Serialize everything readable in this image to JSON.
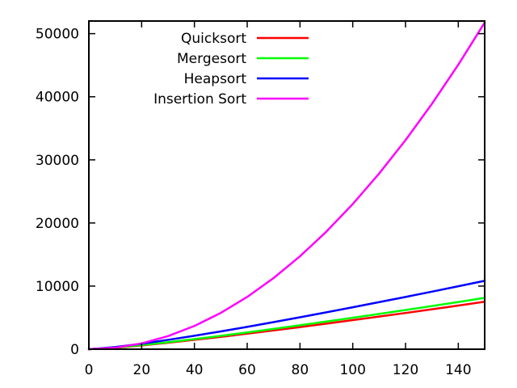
{
  "chart_data": {
    "type": "line",
    "title": "",
    "xlabel": "",
    "ylabel": "",
    "xlim": [
      0,
      150
    ],
    "ylim": [
      0,
      52000
    ],
    "xticks": [
      0,
      20,
      40,
      60,
      80,
      100,
      120,
      140
    ],
    "yticks": [
      0,
      10000,
      20000,
      30000,
      40000,
      50000
    ],
    "grid": false,
    "legend_position": "top-left",
    "x": [
      0,
      10,
      20,
      30,
      40,
      50,
      60,
      70,
      80,
      90,
      100,
      110,
      120,
      130,
      140,
      150
    ],
    "series": [
      {
        "name": "Quicksort",
        "color": "#ff0000",
        "values": [
          0,
          230,
          600,
          1020,
          1480,
          1960,
          2460,
          2980,
          3510,
          4050,
          4610,
          5170,
          5740,
          6320,
          6910,
          7520
        ]
      },
      {
        "name": "Mergesort",
        "color": "#00ff00",
        "values": [
          0,
          250,
          650,
          1100,
          1600,
          2120,
          2660,
          3220,
          3800,
          4380,
          4980,
          5590,
          6210,
          6840,
          7480,
          8130
        ]
      },
      {
        "name": "Heapsort",
        "color": "#0000ff",
        "values": [
          0,
          330,
          870,
          1480,
          2130,
          2820,
          3540,
          4290,
          5060,
          5840,
          6640,
          7460,
          8280,
          9120,
          9970,
          10840
        ]
      },
      {
        "name": "Insertion Sort",
        "color": "#ff00ff",
        "values": [
          0,
          230,
          920,
          2070,
          3680,
          5750,
          8280,
          11270,
          14720,
          18630,
          23000,
          27830,
          33120,
          38870,
          45080,
          51750
        ]
      }
    ]
  }
}
